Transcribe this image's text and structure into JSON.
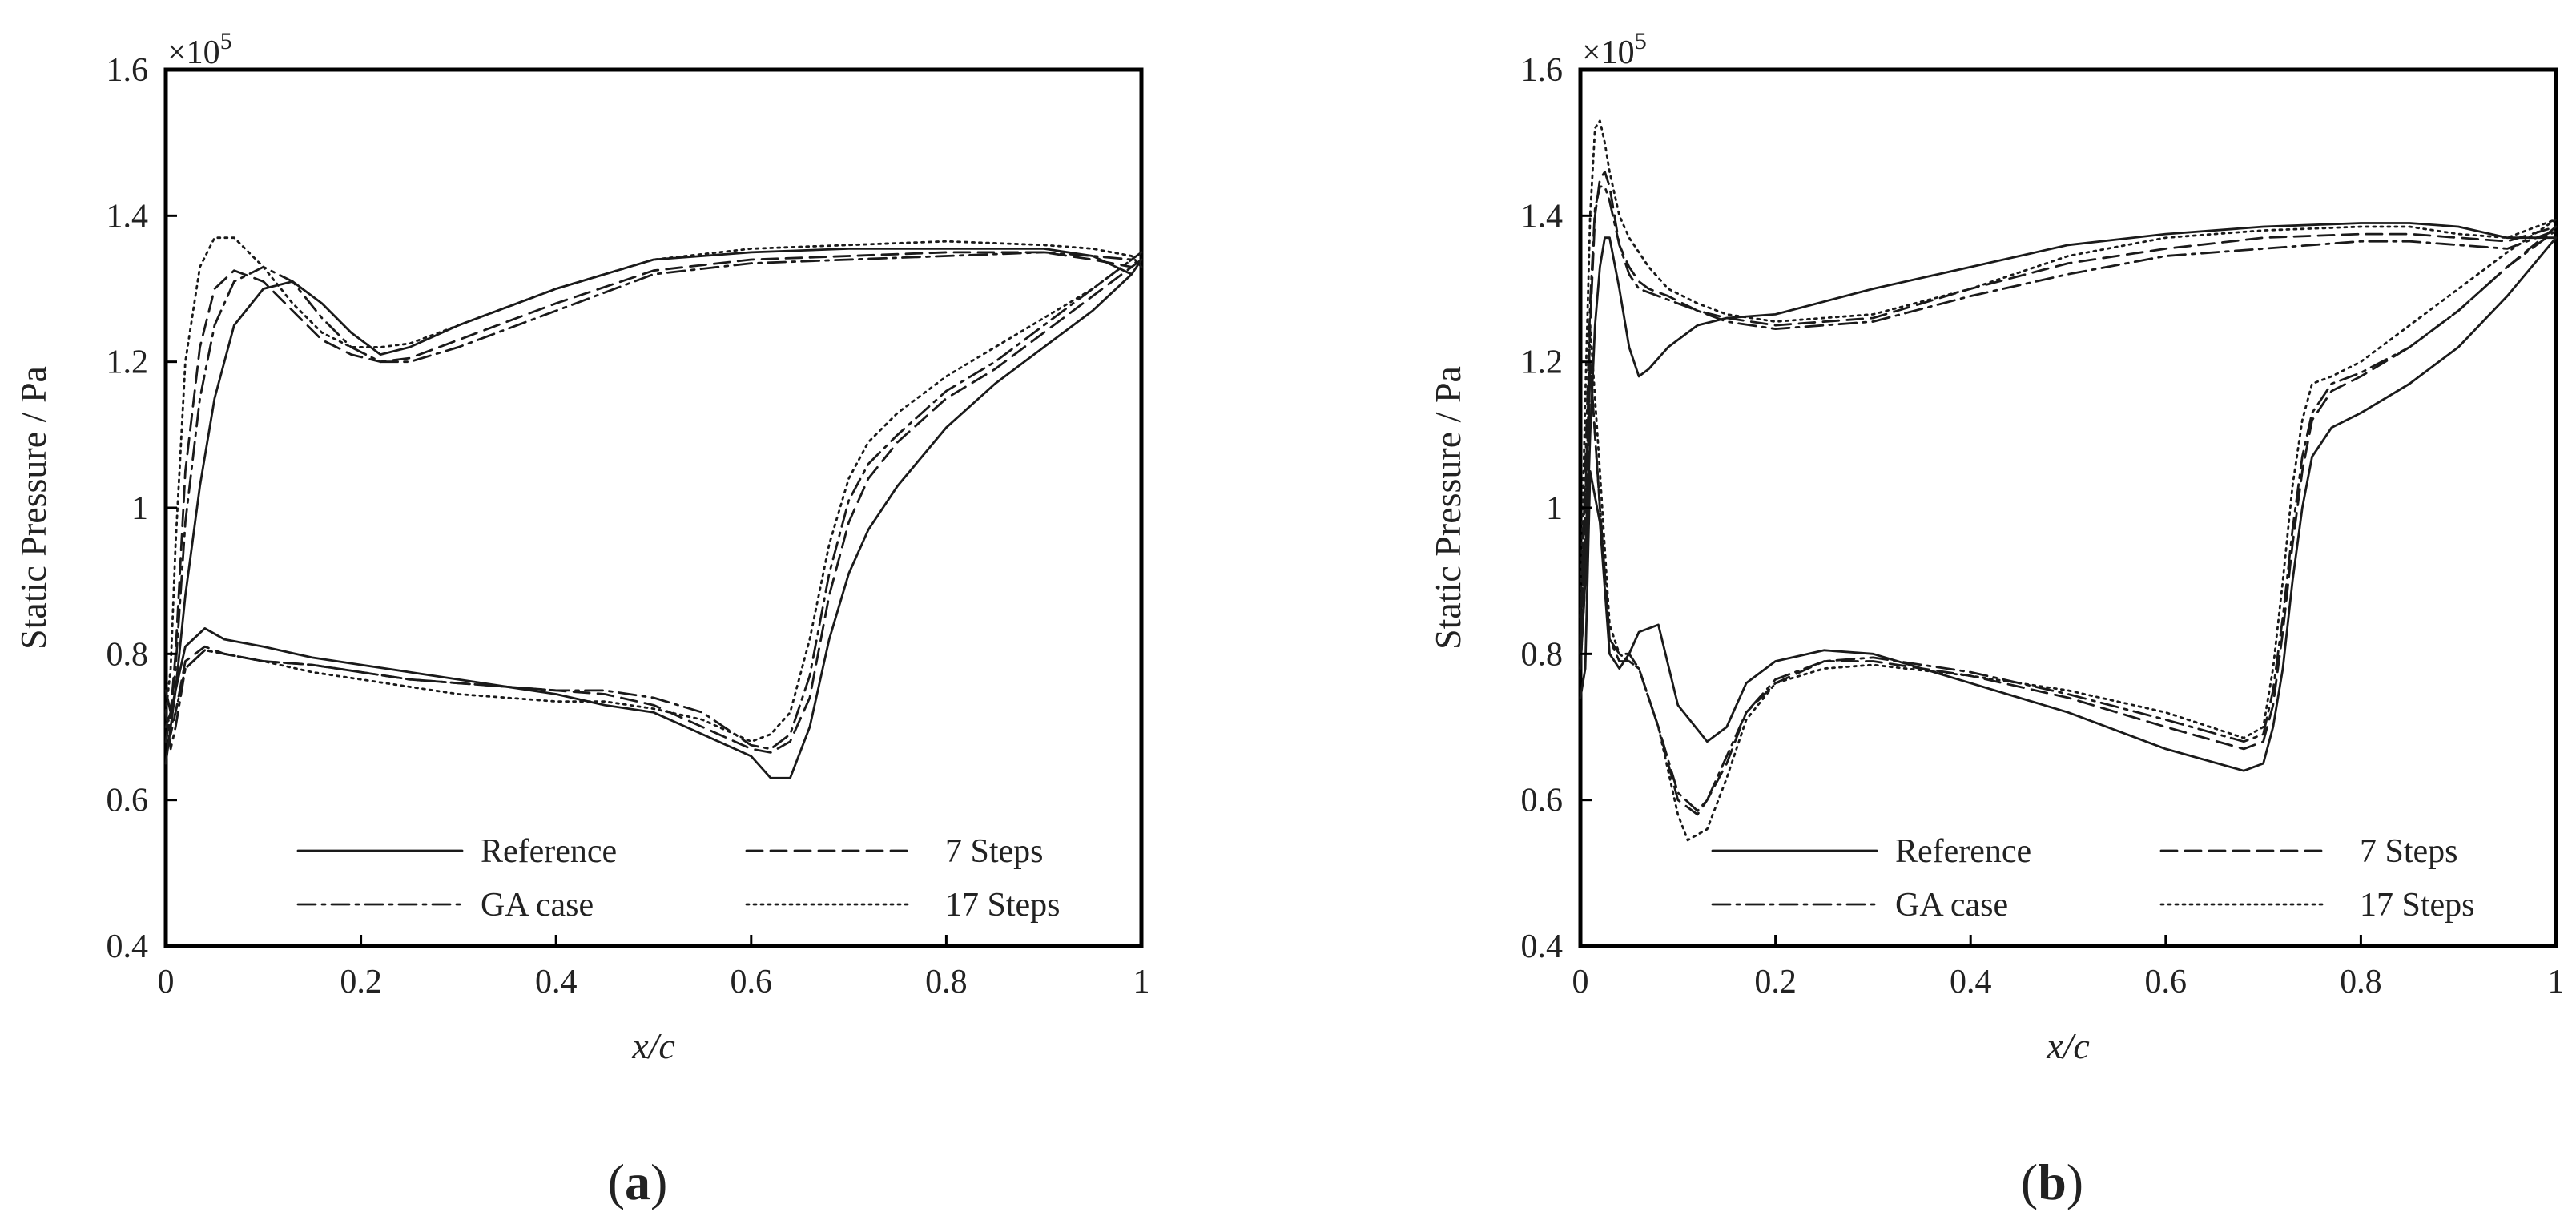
{
  "chart_data": [
    {
      "type": "line",
      "panel_label_open": "(",
      "panel_label_letter": "a",
      "panel_label_close": ")",
      "xlabel": "x/c",
      "ylabel": "Static Pressure / Pa",
      "y_scale_label": "×10",
      "y_scale_exponent": "5",
      "xlim": [
        0,
        1
      ],
      "ylim": [
        0.4,
        1.6
      ],
      "x_ticks": [
        0,
        0.2,
        0.4,
        0.6,
        0.8,
        1
      ],
      "x_tick_labels": [
        "0",
        "0.2",
        "0.4",
        "0.6",
        "0.8",
        "1"
      ],
      "y_ticks": [
        0.4,
        0.6,
        0.8,
        1.0,
        1.2,
        1.4,
        1.6
      ],
      "y_tick_labels": [
        "0.4",
        "0.6",
        "0.8",
        "1",
        "1.2",
        "1.4",
        "1.6"
      ],
      "legend_position": "bottom-center",
      "series": [
        {
          "name": "Reference",
          "style": "solid",
          "x": [
            0.0,
            0.005,
            0.01,
            0.02,
            0.035,
            0.05,
            0.07,
            0.1,
            0.13,
            0.16,
            0.19,
            0.22,
            0.25,
            0.3,
            0.4,
            0.5,
            0.6,
            0.7,
            0.8,
            0.9,
            0.95,
            0.99,
            1.0,
            0.99,
            0.95,
            0.9,
            0.85,
            0.8,
            0.75,
            0.72,
            0.7,
            0.68,
            0.66,
            0.64,
            0.62,
            0.6,
            0.55,
            0.5,
            0.45,
            0.4,
            0.35,
            0.3,
            0.25,
            0.2,
            0.15,
            0.1,
            0.06,
            0.04,
            0.02,
            0.01,
            0.005,
            0.0
          ],
          "y": [
            0.65,
            0.7,
            0.75,
            0.88,
            1.03,
            1.15,
            1.25,
            1.3,
            1.31,
            1.28,
            1.24,
            1.21,
            1.22,
            1.25,
            1.3,
            1.34,
            1.35,
            1.355,
            1.355,
            1.355,
            1.345,
            1.32,
            1.34,
            1.32,
            1.27,
            1.22,
            1.17,
            1.11,
            1.03,
            0.97,
            0.91,
            0.82,
            0.7,
            0.63,
            0.63,
            0.66,
            0.69,
            0.72,
            0.73,
            0.745,
            0.755,
            0.765,
            0.775,
            0.785,
            0.795,
            0.81,
            0.82,
            0.835,
            0.81,
            0.75,
            0.72,
            0.75
          ]
        },
        {
          "name": "7 Steps",
          "style": "dashed",
          "x": [
            0.0,
            0.005,
            0.01,
            0.02,
            0.035,
            0.05,
            0.07,
            0.1,
            0.13,
            0.16,
            0.19,
            0.22,
            0.25,
            0.3,
            0.4,
            0.5,
            0.6,
            0.7,
            0.8,
            0.9,
            0.95,
            0.99,
            1.0,
            0.99,
            0.95,
            0.9,
            0.85,
            0.8,
            0.75,
            0.72,
            0.7,
            0.68,
            0.66,
            0.64,
            0.62,
            0.6,
            0.55,
            0.5,
            0.45,
            0.4,
            0.35,
            0.3,
            0.25,
            0.2,
            0.15,
            0.1,
            0.06,
            0.04,
            0.02,
            0.01,
            0.005,
            0.0
          ],
          "y": [
            0.68,
            0.72,
            0.8,
            1.05,
            1.22,
            1.3,
            1.325,
            1.31,
            1.27,
            1.23,
            1.21,
            1.2,
            1.205,
            1.23,
            1.28,
            1.325,
            1.34,
            1.345,
            1.35,
            1.35,
            1.34,
            1.33,
            1.34,
            1.33,
            1.29,
            1.24,
            1.19,
            1.15,
            1.09,
            1.04,
            0.98,
            0.88,
            0.74,
            0.68,
            0.665,
            0.67,
            0.7,
            0.73,
            0.745,
            0.75,
            0.755,
            0.76,
            0.765,
            0.775,
            0.785,
            0.79,
            0.8,
            0.81,
            0.79,
            0.72,
            0.69,
            0.72
          ]
        },
        {
          "name": "GA case",
          "style": "dashdot",
          "x": [
            0.0,
            0.005,
            0.01,
            0.02,
            0.035,
            0.05,
            0.07,
            0.1,
            0.13,
            0.16,
            0.19,
            0.22,
            0.25,
            0.3,
            0.4,
            0.5,
            0.6,
            0.7,
            0.8,
            0.9,
            0.95,
            0.99,
            1.0,
            0.99,
            0.95,
            0.9,
            0.85,
            0.8,
            0.75,
            0.72,
            0.7,
            0.68,
            0.66,
            0.64,
            0.62,
            0.6,
            0.55,
            0.5,
            0.45,
            0.4,
            0.35,
            0.3,
            0.25,
            0.2,
            0.15,
            0.1,
            0.06,
            0.04,
            0.02,
            0.01,
            0.005,
            0.0
          ],
          "y": [
            0.7,
            0.72,
            0.78,
            0.98,
            1.15,
            1.25,
            1.31,
            1.33,
            1.31,
            1.26,
            1.22,
            1.2,
            1.2,
            1.22,
            1.27,
            1.32,
            1.335,
            1.34,
            1.345,
            1.35,
            1.345,
            1.34,
            1.35,
            1.34,
            1.3,
            1.25,
            1.2,
            1.16,
            1.1,
            1.06,
            1.01,
            0.91,
            0.77,
            0.69,
            0.67,
            0.675,
            0.72,
            0.74,
            0.75,
            0.75,
            0.755,
            0.76,
            0.765,
            0.775,
            0.785,
            0.79,
            0.8,
            0.805,
            0.78,
            0.7,
            0.67,
            0.72
          ]
        },
        {
          "name": "17 Steps",
          "style": "dotted",
          "x": [
            0.0,
            0.005,
            0.01,
            0.02,
            0.035,
            0.05,
            0.07,
            0.1,
            0.13,
            0.16,
            0.19,
            0.22,
            0.25,
            0.3,
            0.4,
            0.5,
            0.6,
            0.7,
            0.8,
            0.9,
            0.95,
            0.99,
            1.0,
            0.99,
            0.95,
            0.9,
            0.85,
            0.8,
            0.75,
            0.72,
            0.7,
            0.68,
            0.66,
            0.64,
            0.62,
            0.6,
            0.55,
            0.5,
            0.45,
            0.4,
            0.35,
            0.3,
            0.25,
            0.2,
            0.15,
            0.1,
            0.06,
            0.04,
            0.02,
            0.01,
            0.005,
            0.0
          ],
          "y": [
            0.72,
            0.78,
            0.95,
            1.2,
            1.33,
            1.37,
            1.37,
            1.33,
            1.28,
            1.24,
            1.22,
            1.22,
            1.225,
            1.25,
            1.3,
            1.34,
            1.355,
            1.36,
            1.365,
            1.36,
            1.355,
            1.345,
            1.33,
            1.34,
            1.3,
            1.26,
            1.22,
            1.18,
            1.13,
            1.09,
            1.04,
            0.95,
            0.82,
            0.72,
            0.69,
            0.68,
            0.71,
            0.725,
            0.735,
            0.735,
            0.74,
            0.745,
            0.755,
            0.765,
            0.775,
            0.79,
            0.8,
            0.805,
            0.78,
            0.72,
            0.7,
            0.72
          ]
        }
      ]
    },
    {
      "type": "line",
      "panel_label_open": "(",
      "panel_label_letter": "b",
      "panel_label_close": ")",
      "xlabel": "x/c",
      "ylabel": "Static Pressure / Pa",
      "y_scale_label": "×10",
      "y_scale_exponent": "5",
      "xlim": [
        0,
        1
      ],
      "ylim": [
        0.4,
        1.6
      ],
      "x_ticks": [
        0,
        0.2,
        0.4,
        0.6,
        0.8,
        1
      ],
      "x_tick_labels": [
        "0",
        "0.2",
        "0.4",
        "0.6",
        "0.8",
        "1"
      ],
      "y_ticks": [
        0.4,
        0.6,
        0.8,
        1.0,
        1.2,
        1.4,
        1.6
      ],
      "y_tick_labels": [
        "0.4",
        "0.6",
        "0.8",
        "1",
        "1.2",
        "1.4",
        "1.6"
      ],
      "legend_position": "bottom-center",
      "series": [
        {
          "name": "Reference",
          "style": "solid",
          "x": [
            0.0,
            0.005,
            0.01,
            0.015,
            0.02,
            0.025,
            0.03,
            0.04,
            0.05,
            0.06,
            0.07,
            0.09,
            0.12,
            0.15,
            0.2,
            0.3,
            0.4,
            0.5,
            0.6,
            0.7,
            0.8,
            0.85,
            0.9,
            0.95,
            1.0,
            0.95,
            0.9,
            0.85,
            0.8,
            0.77,
            0.75,
            0.74,
            0.73,
            0.72,
            0.71,
            0.7,
            0.68,
            0.6,
            0.5,
            0.4,
            0.3,
            0.25,
            0.2,
            0.17,
            0.15,
            0.13,
            0.1,
            0.08,
            0.06,
            0.05,
            0.04,
            0.03,
            0.02,
            0.01,
            0.005,
            0.0
          ],
          "y": [
            0.78,
            0.9,
            1.1,
            1.25,
            1.33,
            1.37,
            1.37,
            1.3,
            1.22,
            1.18,
            1.19,
            1.22,
            1.25,
            1.26,
            1.265,
            1.3,
            1.33,
            1.36,
            1.375,
            1.385,
            1.39,
            1.39,
            1.385,
            1.37,
            1.37,
            1.29,
            1.22,
            1.17,
            1.13,
            1.11,
            1.07,
            1.0,
            0.9,
            0.78,
            0.7,
            0.65,
            0.64,
            0.67,
            0.72,
            0.76,
            0.8,
            0.805,
            0.79,
            0.76,
            0.7,
            0.68,
            0.73,
            0.84,
            0.83,
            0.8,
            0.78,
            0.8,
            0.98,
            1.05,
            0.78,
            0.74
          ]
        },
        {
          "name": "7 Steps",
          "style": "dashed",
          "x": [
            0.0,
            0.005,
            0.01,
            0.015,
            0.02,
            0.025,
            0.03,
            0.04,
            0.05,
            0.06,
            0.07,
            0.09,
            0.12,
            0.15,
            0.2,
            0.3,
            0.4,
            0.5,
            0.6,
            0.7,
            0.8,
            0.85,
            0.9,
            0.95,
            1.0,
            0.95,
            0.9,
            0.85,
            0.8,
            0.77,
            0.75,
            0.74,
            0.73,
            0.72,
            0.71,
            0.7,
            0.68,
            0.6,
            0.5,
            0.4,
            0.3,
            0.25,
            0.2,
            0.17,
            0.15,
            0.13,
            0.12,
            0.1,
            0.08,
            0.06,
            0.05,
            0.04,
            0.03,
            0.02,
            0.01,
            0.005,
            0.0
          ],
          "y": [
            0.8,
            1.0,
            1.25,
            1.4,
            1.45,
            1.46,
            1.44,
            1.36,
            1.33,
            1.31,
            1.3,
            1.29,
            1.27,
            1.26,
            1.25,
            1.26,
            1.3,
            1.335,
            1.355,
            1.37,
            1.375,
            1.375,
            1.37,
            1.365,
            1.385,
            1.33,
            1.27,
            1.22,
            1.18,
            1.16,
            1.12,
            1.05,
            0.95,
            0.83,
            0.73,
            0.68,
            0.67,
            0.7,
            0.74,
            0.77,
            0.79,
            0.79,
            0.76,
            0.72,
            0.65,
            0.6,
            0.58,
            0.6,
            0.7,
            0.78,
            0.8,
            0.8,
            0.82,
            1.0,
            1.2,
            0.9,
            0.78
          ]
        },
        {
          "name": "GA case",
          "style": "dashdot",
          "x": [
            0.0,
            0.005,
            0.01,
            0.015,
            0.02,
            0.025,
            0.03,
            0.04,
            0.05,
            0.06,
            0.07,
            0.09,
            0.12,
            0.15,
            0.2,
            0.3,
            0.4,
            0.5,
            0.6,
            0.7,
            0.8,
            0.85,
            0.9,
            0.95,
            1.0,
            0.95,
            0.9,
            0.85,
            0.8,
            0.77,
            0.75,
            0.74,
            0.73,
            0.72,
            0.71,
            0.7,
            0.68,
            0.6,
            0.5,
            0.4,
            0.3,
            0.25,
            0.2,
            0.17,
            0.15,
            0.13,
            0.12,
            0.1,
            0.08,
            0.06,
            0.05,
            0.04,
            0.03,
            0.02,
            0.01,
            0.005,
            0.0
          ],
          "y": [
            0.82,
            1.05,
            1.28,
            1.41,
            1.44,
            1.44,
            1.42,
            1.36,
            1.32,
            1.3,
            1.295,
            1.285,
            1.27,
            1.255,
            1.245,
            1.255,
            1.29,
            1.32,
            1.345,
            1.355,
            1.365,
            1.365,
            1.36,
            1.355,
            1.38,
            1.33,
            1.27,
            1.22,
            1.185,
            1.17,
            1.13,
            1.07,
            0.97,
            0.85,
            0.75,
            0.69,
            0.68,
            0.71,
            0.745,
            0.775,
            0.795,
            0.79,
            0.765,
            0.72,
            0.66,
            0.6,
            0.585,
            0.61,
            0.7,
            0.78,
            0.79,
            0.79,
            0.82,
            1.0,
            1.2,
            0.92,
            0.8
          ]
        },
        {
          "name": "17 Steps",
          "style": "dotted",
          "x": [
            0.0,
            0.005,
            0.01,
            0.015,
            0.02,
            0.025,
            0.03,
            0.04,
            0.05,
            0.06,
            0.07,
            0.09,
            0.12,
            0.15,
            0.2,
            0.3,
            0.4,
            0.5,
            0.6,
            0.7,
            0.8,
            0.85,
            0.9,
            0.95,
            1.0,
            0.95,
            0.9,
            0.85,
            0.8,
            0.77,
            0.75,
            0.74,
            0.73,
            0.72,
            0.71,
            0.7,
            0.68,
            0.6,
            0.5,
            0.4,
            0.3,
            0.25,
            0.2,
            0.17,
            0.15,
            0.13,
            0.11,
            0.1,
            0.08,
            0.06,
            0.05,
            0.04,
            0.03,
            0.02,
            0.01,
            0.005,
            0.0
          ],
          "y": [
            0.85,
            1.15,
            1.4,
            1.52,
            1.53,
            1.5,
            1.46,
            1.4,
            1.37,
            1.35,
            1.33,
            1.3,
            1.28,
            1.265,
            1.255,
            1.265,
            1.3,
            1.345,
            1.37,
            1.38,
            1.385,
            1.385,
            1.375,
            1.37,
            1.395,
            1.35,
            1.3,
            1.25,
            1.2,
            1.18,
            1.17,
            1.12,
            1.03,
            0.9,
            0.78,
            0.7,
            0.685,
            0.72,
            0.75,
            0.77,
            0.785,
            0.78,
            0.76,
            0.71,
            0.63,
            0.56,
            0.545,
            0.58,
            0.7,
            0.78,
            0.79,
            0.8,
            0.84,
            1.05,
            1.25,
            0.95,
            0.82
          ]
        }
      ]
    }
  ]
}
